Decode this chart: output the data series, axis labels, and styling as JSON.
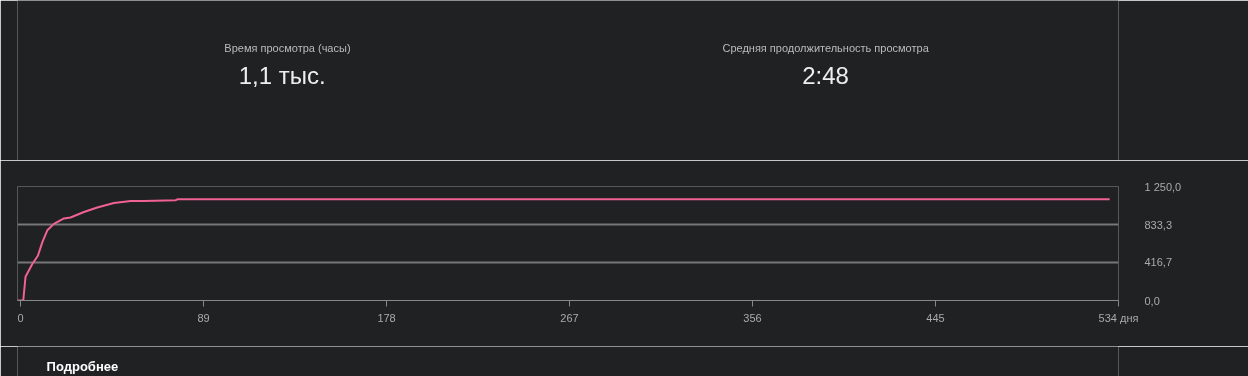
{
  "chart_data": {
    "type": "line",
    "title": "Время просмотра (часы)",
    "subtitle": "1,1 тыс.",
    "annotations": [
      "Средняя продолжительность просмотра",
      "2:48",
      "Подробнее"
    ],
    "x": [
      -1.5,
      1.3,
      2.4,
      5.7,
      8.4,
      10.6,
      13,
      16.2,
      21.1,
      24.3,
      30.8,
      37.3,
      45.4,
      53.6,
      60,
      75.5,
      76.3,
      529.7
    ],
    "series": [
      {
        "color": "#f06292",
        "values": [
          0,
          0,
          260,
          400,
          490,
          640,
          770,
          840,
          900,
          910,
          970,
          1020,
          1070,
          1090,
          1090,
          1100,
          1110,
          1110
        ]
      }
    ],
    "xlim": [
      -1.5,
      534
    ],
    "xticks": [
      0,
      89,
      178,
      267,
      356,
      445,
      {
        "value": 534,
        "label": "534 дня"
      }
    ],
    "ylim": [
      0,
      1250
    ],
    "yticks": [
      {
        "value": 0,
        "label": "0,0"
      },
      {
        "value": 416.7,
        "label": "416,7"
      },
      {
        "value": 833.3,
        "label": "833,3"
      },
      {
        "value": 1250,
        "label": "1 250,0"
      }
    ],
    "grid": "y",
    "marker": "none",
    "line_style": "solid"
  }
}
